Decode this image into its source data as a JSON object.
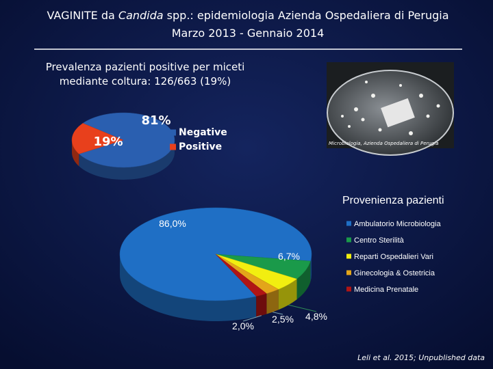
{
  "slide": {
    "title_prefix": "VAGINITE da ",
    "title_italic": "Candida",
    "title_suffix": " spp.: epidemiologia Azienda Ospedaliera di Perugia",
    "subtitle": "Marzo 2013 - Gennaio 2014",
    "photo_caption": "Microbiologia, Azienda Ospedaliera di Perugia",
    "citation": "Leli et al. 2015; Unpublished data"
  },
  "chart_data": [
    {
      "type": "pie",
      "title": [
        "Prevalenza pazienti positive per miceti",
        "mediante coltura: 126/663 (19%)"
      ],
      "categories": [
        "Negative",
        "Positive"
      ],
      "values": [
        81,
        19
      ],
      "value_labels": [
        "81%",
        "19%"
      ],
      "colors": [
        "#2a5fb0",
        "#e8401c"
      ]
    },
    {
      "type": "pie",
      "title": "Provenienza pazienti",
      "categories": [
        "Ambulatorio Microbiologia",
        "Centro Sterilità",
        "Reparti Ospedalieri Vari",
        "Ginecologia & Ostetricia",
        "Medicina Prenatale"
      ],
      "values": [
        86.0,
        6.7,
        4.8,
        2.5,
        2.0
      ],
      "value_labels": [
        "86,0%",
        "6,7%",
        "4,8%",
        "2,5%",
        "2,0%"
      ],
      "colors": [
        "#1f6fc5",
        "#1a9a4a",
        "#f2ee10",
        "#e3a51a",
        "#b01515"
      ]
    }
  ]
}
